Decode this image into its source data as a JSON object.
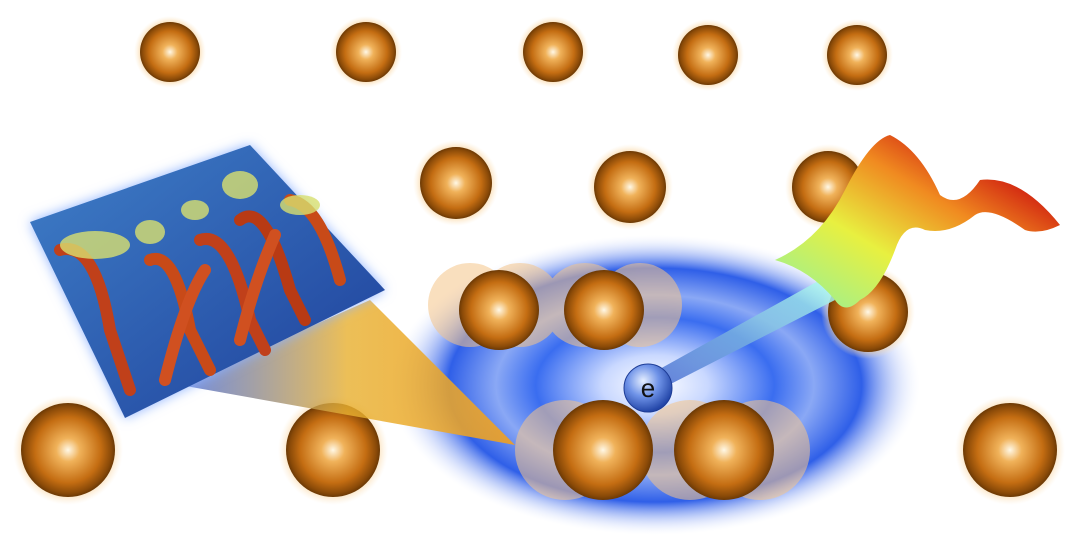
{
  "electron": {
    "label": "e"
  }
}
